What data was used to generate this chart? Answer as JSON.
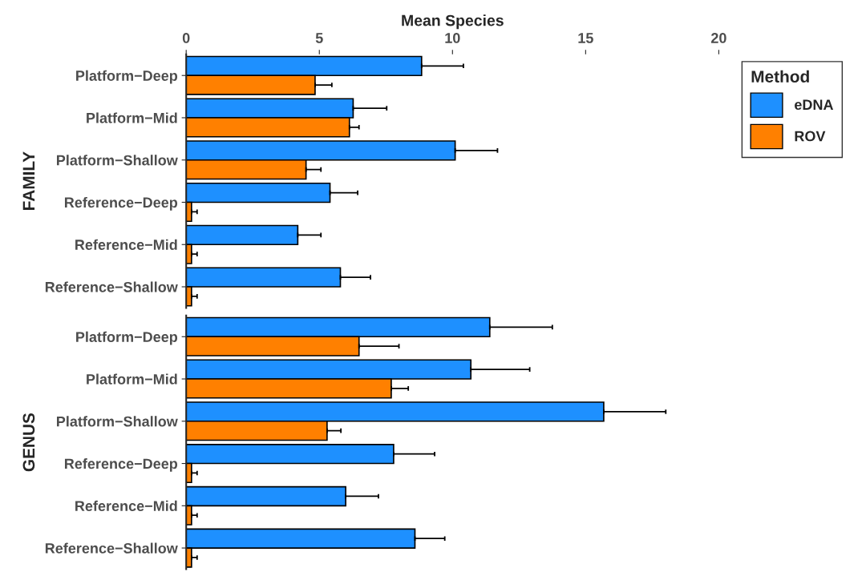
{
  "chart_data": [
    {
      "type": "bar",
      "orientation": "horizontal",
      "xlabel": "Mean Species",
      "ylabel": "FAMILY",
      "legend_title": "Method",
      "legend": "top right",
      "categories": [
        "Platform−Deep",
        "Platform−Mid",
        "Platform−Shallow",
        "Reference−Deep",
        "Reference−Mid",
        "Reference−Shallow"
      ],
      "series": [
        {
          "name": "eDNA",
          "color": "#1e90ff",
          "values": [
            8.84,
            6.27,
            10.1,
            5.4,
            4.19,
            5.79
          ],
          "errors": [
            [
              8.84,
              10.41
            ],
            [
              6.27,
              7.53
            ],
            [
              10.1,
              11.69
            ],
            [
              5.4,
              6.44
            ],
            [
              4.19,
              5.06
            ],
            [
              5.79,
              6.92
            ]
          ]
        },
        {
          "name": "ROV",
          "color": "#ff8000",
          "values": [
            4.84,
            6.13,
            4.5,
            0.2,
            0.2,
            0.2
          ],
          "errors": [
            [
              4.84,
              5.47
            ],
            [
              6.13,
              6.49
            ],
            [
              4.5,
              5.06
            ],
            [
              0.2,
              0.41
            ],
            [
              0.2,
              0.41
            ],
            [
              0.2,
              0.41
            ]
          ]
        }
      ],
      "xlim": [
        0,
        20
      ],
      "xticks": [
        0,
        5,
        10,
        15,
        20
      ]
    },
    {
      "type": "bar",
      "orientation": "horizontal",
      "ylabel": "GENUS",
      "tick_labels": "y",
      "categories": [
        "Platform−Deep",
        "Platform−Mid",
        "Platform−Shallow",
        "Reference−Deep",
        "Reference−Mid",
        "Reference−Shallow"
      ],
      "series": [
        {
          "color": "#1e90ff",
          "values": [
            11.4,
            10.69,
            15.68,
            7.79,
            5.99,
            8.59
          ],
          "errors": [
            [
              11.4,
              13.75
            ],
            [
              10.69,
              12.9
            ],
            [
              15.68,
              18.01
            ],
            [
              7.79,
              9.33
            ],
            [
              5.99,
              7.22
            ],
            [
              8.59,
              9.71
            ]
          ]
        },
        {
          "color": "#ff8000",
          "values": [
            6.49,
            7.7,
            5.29,
            0.2,
            0.2,
            0.2
          ],
          "errors": [
            [
              6.49,
              7.99
            ],
            [
              7.7,
              8.34
            ],
            [
              5.29,
              5.81
            ],
            [
              0.2,
              0.41
            ],
            [
              0.2,
              0.41
            ],
            [
              0.2,
              0.41
            ]
          ]
        }
      ],
      "xlim": [
        0,
        20
      ],
      "xticks": [
        0,
        5,
        10,
        15,
        20
      ]
    }
  ]
}
